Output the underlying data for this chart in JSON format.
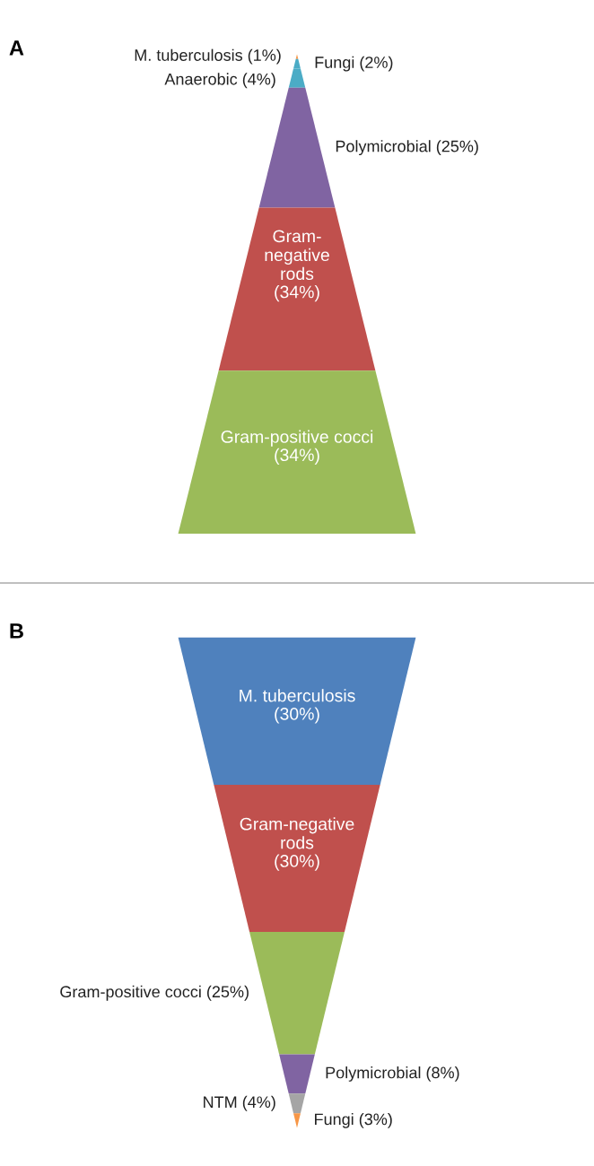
{
  "chart_data": [
    {
      "type": "other",
      "title": "A",
      "categories": [
        "M. tuberculosis",
        "Fungi",
        "Anaerobic",
        "Polymicrobial",
        "Gram-negative rods",
        "Gram-positive cocci"
      ],
      "values": [
        1,
        2,
        4,
        25,
        34,
        34
      ],
      "value_labels": [
        "(1%)",
        "(2%)",
        "(4%)",
        "(25%)",
        "(34%)",
        "(34%)"
      ],
      "colors": [
        "#f79646",
        "#4bacc6",
        "#4bacc6",
        "#8064a2",
        "#c0504d",
        "#9bbb59"
      ]
    },
    {
      "type": "other",
      "title": "B",
      "categories": [
        "M. tuberculosis",
        "Gram-negative rods",
        "Gram-positive cocci",
        "Polymicrobial",
        "NTM",
        "Fungi"
      ],
      "values": [
        30,
        30,
        25,
        8,
        4,
        3
      ],
      "value_labels": [
        "(30%)",
        "(30%)",
        "(25%)",
        "(8%)",
        "(4%)",
        "(3%)"
      ],
      "colors": [
        "#4f81bd",
        "#c0504d",
        "#9bbb59",
        "#8064a2",
        "#a5a5a5",
        "#f79646"
      ]
    }
  ]
}
